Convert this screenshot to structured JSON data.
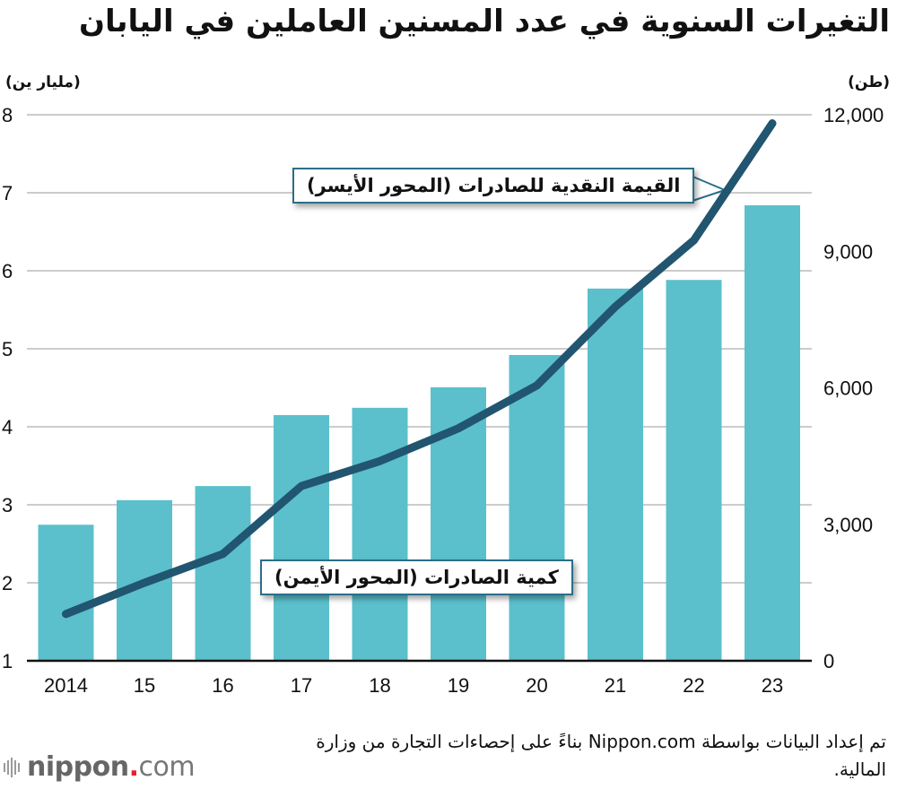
{
  "title": "التغيرات السنوية في عدد المسنين العاملين في اليابان",
  "units": {
    "left": "(مليار ين)",
    "right": "(طن)"
  },
  "callouts": {
    "value_line": "القيمة النقدية للصادرات (المحور الأيسر)",
    "quantity_bars": "كمية الصادرات (المحور الأيمن)"
  },
  "source": "تم إعداد البيانات بواسطة Nippon.com بناءً على إحصاءات التجارة من وزارة المالية.",
  "logo": {
    "name": "nippon",
    "dot": ".",
    "suffix": "com"
  },
  "colors": {
    "bar": "#5bc0cc",
    "line": "#22556f",
    "grid": "#cccccc",
    "axis": "#111111"
  },
  "chart_data": {
    "type": "bar+line",
    "title": "التغيرات السنوية في عدد المسنين العاملين في اليابان",
    "categories": [
      "2014",
      "15",
      "16",
      "17",
      "18",
      "19",
      "20",
      "21",
      "22",
      "23"
    ],
    "series": [
      {
        "name": "كمية الصادرات (المحور الأيمن)",
        "type": "bar",
        "axis": "right",
        "unit": "طن",
        "values": [
          2990,
          3530,
          3840,
          5400,
          5560,
          6010,
          6720,
          8180,
          8370,
          10010
        ]
      },
      {
        "name": "القيمة النقدية للصادرات (المحور الأيسر)",
        "type": "line",
        "axis": "left",
        "unit": "مليار ين",
        "values": [
          1.6,
          2.0,
          2.37,
          3.24,
          3.56,
          3.98,
          4.53,
          5.54,
          6.39,
          7.89
        ]
      }
    ],
    "left_axis": {
      "label": "(مليار ين)",
      "range": [
        1,
        8
      ],
      "ticks": [
        "1",
        "2",
        "3",
        "4",
        "5",
        "6",
        "7",
        "8"
      ]
    },
    "right_axis": {
      "label": "(طن)",
      "range": [
        0,
        12000
      ],
      "ticks": [
        "0",
        "3,000",
        "6,000",
        "9,000",
        "12,000"
      ]
    },
    "grid": true,
    "legend": "callouts"
  }
}
